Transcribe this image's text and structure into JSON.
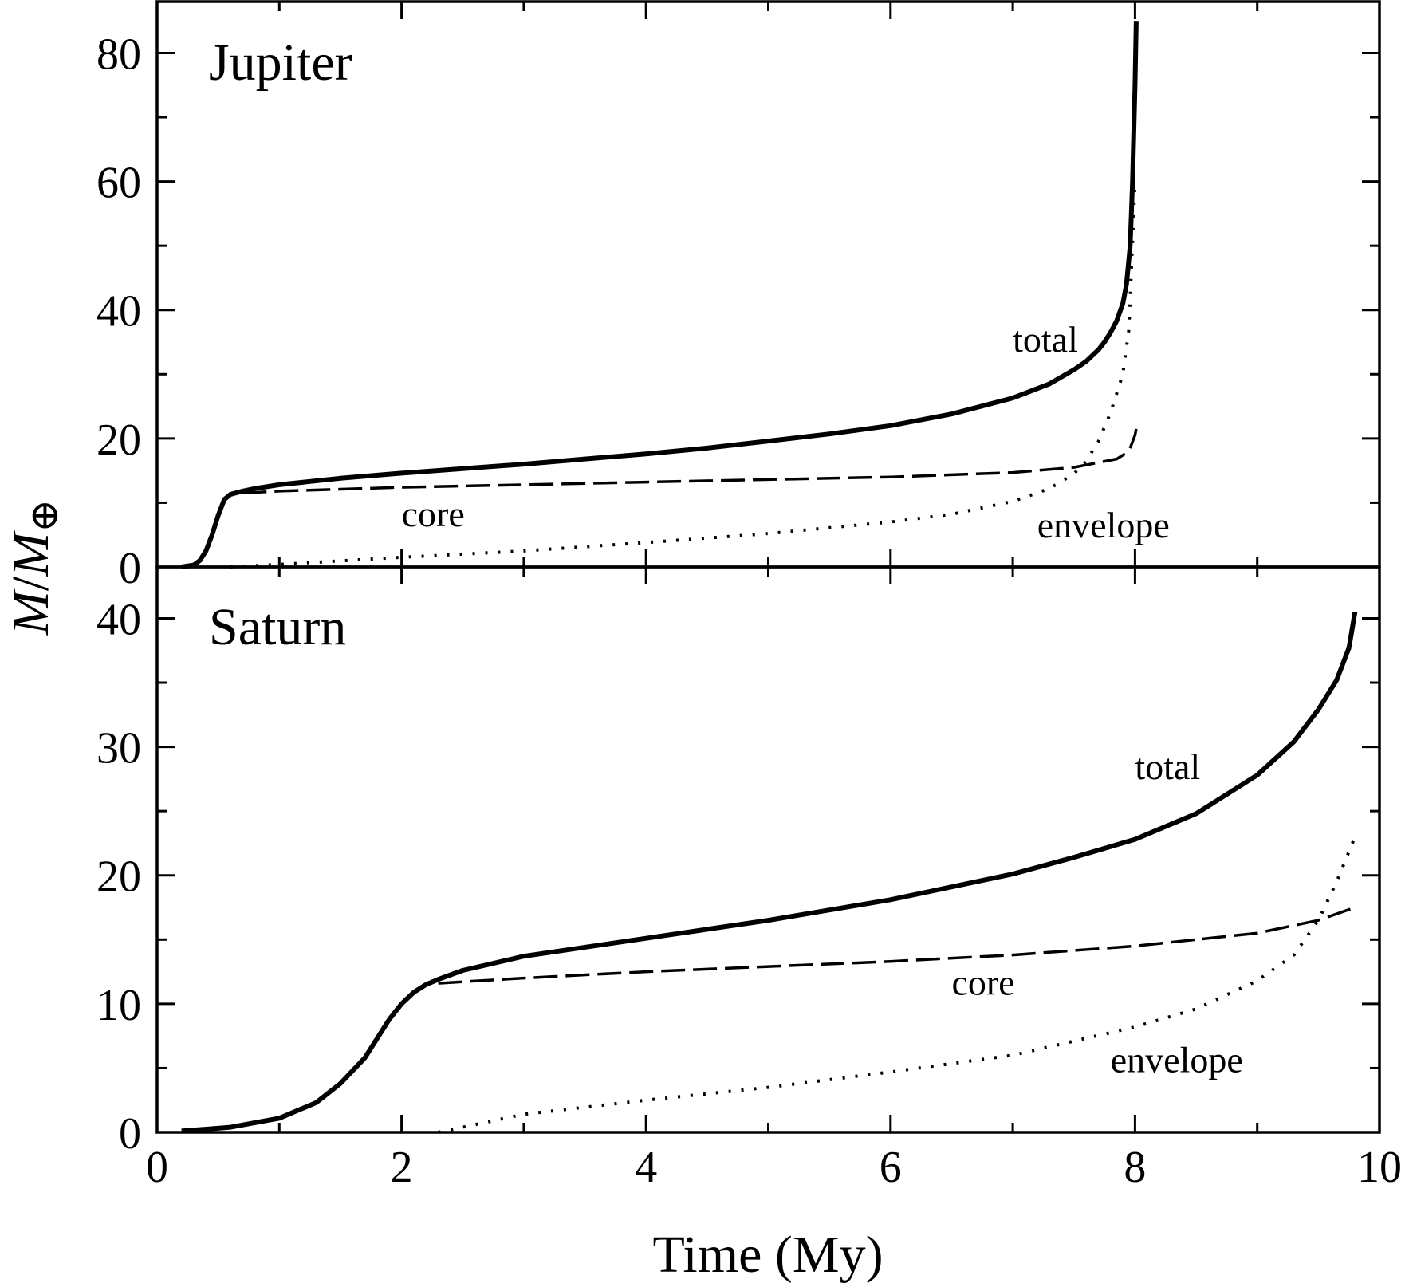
{
  "chart_data": [
    {
      "type": "line",
      "title": "Jupiter",
      "xlabel": "Time (My)",
      "ylabel": "",
      "xlim": [
        0,
        10
      ],
      "ylim": [
        0,
        88
      ],
      "xticks": [
        0,
        2,
        4,
        6,
        8,
        10
      ],
      "yticks": [
        0,
        20,
        40,
        60,
        80
      ],
      "grid": false,
      "series": [
        {
          "name": "total",
          "style": "solid",
          "x": [
            0.2,
            0.3,
            0.35,
            0.4,
            0.45,
            0.5,
            0.55,
            0.6,
            0.7,
            0.8,
            1.0,
            1.5,
            2.0,
            2.5,
            3.0,
            3.5,
            4.0,
            4.5,
            5.0,
            5.5,
            6.0,
            6.5,
            7.0,
            7.3,
            7.5,
            7.6,
            7.7,
            7.75,
            7.8,
            7.85,
            7.9,
            7.93,
            7.96,
            7.98,
            8.0,
            8.01
          ],
          "values": [
            0,
            0.3,
            1,
            2.5,
            5,
            8,
            10.5,
            11.3,
            11.8,
            12.2,
            12.8,
            13.8,
            14.6,
            15.3,
            16,
            16.8,
            17.6,
            18.5,
            19.6,
            20.7,
            22,
            23.8,
            26.3,
            28.5,
            30.7,
            32,
            33.8,
            35,
            36.5,
            38.3,
            41,
            44,
            50,
            60,
            75,
            85
          ]
        },
        {
          "name": "core",
          "style": "dashed",
          "x": [
            0.7,
            1.0,
            2.0,
            3.0,
            4.0,
            5.0,
            6.0,
            7.0,
            7.5,
            7.85,
            7.95,
            8.0,
            8.01
          ],
          "values": [
            11.5,
            11.8,
            12.4,
            12.8,
            13.2,
            13.6,
            14.0,
            14.7,
            15.5,
            16.8,
            18,
            20.5,
            21.5
          ]
        },
        {
          "name": "envelope",
          "style": "dotted",
          "x": [
            0.6,
            1.0,
            2.0,
            3.0,
            4.0,
            5.0,
            6.0,
            6.5,
            7.0,
            7.3,
            7.5,
            7.6,
            7.7,
            7.8,
            7.9,
            7.95,
            8.0
          ],
          "values": [
            0,
            0.4,
            1.5,
            2.5,
            3.8,
            5.2,
            7,
            8.2,
            10.2,
            12.2,
            14.5,
            16.5,
            19.5,
            24,
            30,
            37,
            60
          ]
        }
      ],
      "annotations": [
        {
          "text": "total",
          "x": 7.0,
          "y": 33.5
        },
        {
          "text": "core",
          "x": 2.0,
          "y": 6.3
        },
        {
          "text": "envelope",
          "x": 7.2,
          "y": 4.6
        }
      ]
    },
    {
      "type": "line",
      "title": "Saturn",
      "xlabel": "Time (My)",
      "ylabel": "",
      "xlim": [
        0,
        10
      ],
      "ylim": [
        0,
        44
      ],
      "xticks": [
        0,
        2,
        4,
        6,
        8,
        10
      ],
      "yticks": [
        0,
        10,
        20,
        30,
        40
      ],
      "grid": false,
      "series": [
        {
          "name": "total",
          "style": "solid",
          "x": [
            0.2,
            0.6,
            1.0,
            1.3,
            1.5,
            1.7,
            1.8,
            1.9,
            2.0,
            2.1,
            2.2,
            2.3,
            2.5,
            3.0,
            4.0,
            5.0,
            6.0,
            7.0,
            7.5,
            8.0,
            8.5,
            9.0,
            9.3,
            9.5,
            9.65,
            9.75,
            9.8
          ],
          "values": [
            0.1,
            0.4,
            1.1,
            2.3,
            3.8,
            5.8,
            7.3,
            8.8,
            10.0,
            10.9,
            11.5,
            11.9,
            12.6,
            13.7,
            15.1,
            16.5,
            18.1,
            20.1,
            21.4,
            22.8,
            24.8,
            27.8,
            30.4,
            32.9,
            35.2,
            37.7,
            40.5
          ]
        },
        {
          "name": "core",
          "style": "dashed",
          "x": [
            2.3,
            3.0,
            4.0,
            5.0,
            6.0,
            7.0,
            8.0,
            9.0,
            9.5,
            9.8
          ],
          "values": [
            11.6,
            12.0,
            12.5,
            12.9,
            13.3,
            13.8,
            14.5,
            15.5,
            16.5,
            17.5
          ]
        },
        {
          "name": "envelope",
          "style": "dotted",
          "x": [
            2.3,
            3.0,
            4.0,
            5.0,
            6.0,
            7.0,
            8.0,
            8.5,
            9.0,
            9.3,
            9.5,
            9.65,
            9.8
          ],
          "values": [
            0,
            1.4,
            2.5,
            3.5,
            4.7,
            6.0,
            8.2,
            9.6,
            11.8,
            13.8,
            16.5,
            19.5,
            23
          ]
        }
      ],
      "annotations": [
        {
          "text": "total",
          "x": 8.0,
          "y": 27.5
        },
        {
          "text": "core",
          "x": 6.5,
          "y": 10.7
        },
        {
          "text": "envelope",
          "x": 7.8,
          "y": 4.7
        }
      ]
    }
  ],
  "axes": {
    "xlabel": "Time (My)",
    "ylabel_main": "M",
    "ylabel_slash": "/",
    "ylabel_denominator": "M",
    "ylabel_subscript": "⊕"
  }
}
